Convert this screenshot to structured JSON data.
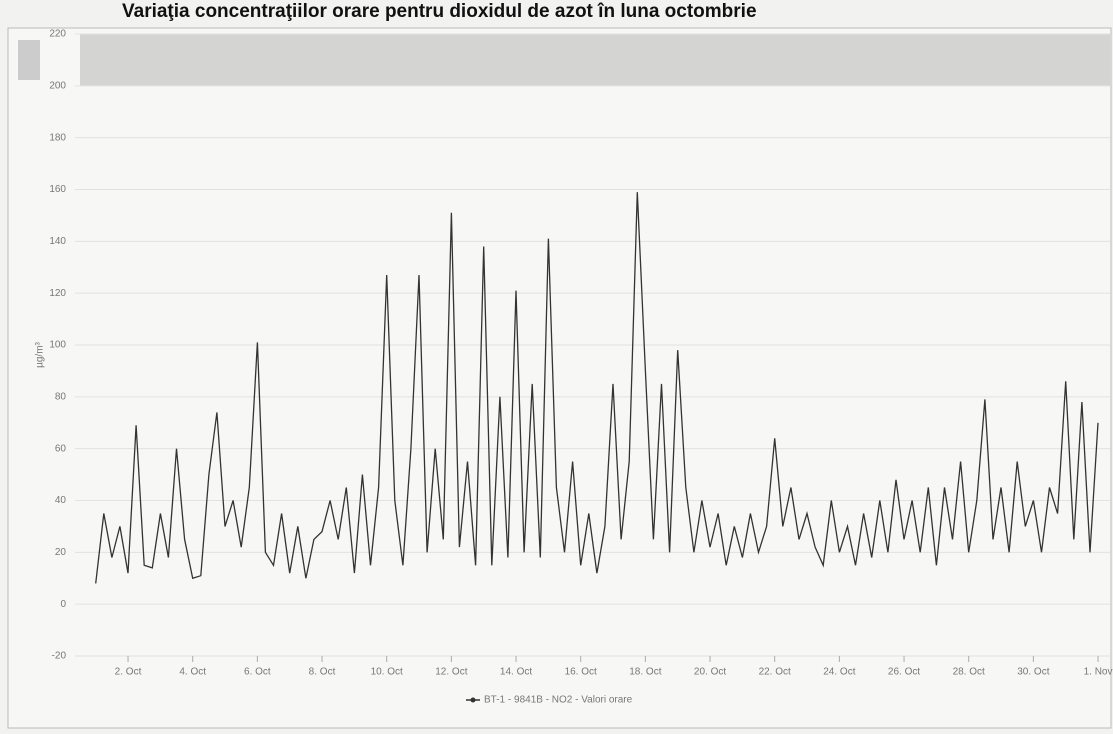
{
  "chart_data": {
    "type": "line",
    "title": "Variaţia concentraţiilor orare pentru dioxidul de azot în luna octombrie",
    "y_label": "µg/m³",
    "x": [
      1,
      1.25,
      1.5,
      1.75,
      2,
      2.25,
      2.5,
      2.75,
      3,
      3.25,
      3.5,
      3.75,
      4,
      4.25,
      4.5,
      4.75,
      5,
      5.25,
      5.5,
      5.75,
      6,
      6.25,
      6.5,
      6.75,
      7,
      7.25,
      7.5,
      7.75,
      8,
      8.25,
      8.5,
      8.75,
      9,
      9.25,
      9.5,
      9.75,
      10,
      10.25,
      10.5,
      10.75,
      11,
      11.25,
      11.5,
      11.75,
      12,
      12.25,
      12.5,
      12.75,
      13,
      13.25,
      13.5,
      13.75,
      14,
      14.25,
      14.5,
      14.75,
      15,
      15.25,
      15.5,
      15.75,
      16,
      16.25,
      16.5,
      16.75,
      17,
      17.25,
      17.5,
      17.75,
      18,
      18.25,
      18.5,
      18.75,
      19,
      19.25,
      19.5,
      19.75,
      20,
      20.25,
      20.5,
      20.75,
      21,
      21.25,
      21.5,
      21.75,
      22,
      22.25,
      22.5,
      22.75,
      23,
      23.25,
      23.5,
      23.75,
      24,
      24.25,
      24.5,
      24.75,
      25,
      25.25,
      25.5,
      25.75,
      26,
      26.25,
      26.5,
      26.75,
      27,
      27.25,
      27.5,
      27.75,
      28,
      28.25,
      28.5,
      28.75,
      29,
      29.25,
      29.5,
      29.75,
      30,
      30.25,
      30.5,
      30.75,
      31,
      31.25,
      31.5,
      31.75,
      32
    ],
    "series": [
      {
        "name": "BT-1 - 9841B - NO2 - Valori orare",
        "color": "#333333",
        "values": [
          8,
          35,
          18,
          30,
          12,
          69,
          15,
          14,
          35,
          18,
          60,
          25,
          10,
          11,
          50,
          74,
          30,
          40,
          22,
          45,
          101,
          20,
          15,
          35,
          12,
          30,
          10,
          25,
          28,
          40,
          25,
          45,
          12,
          50,
          15,
          45,
          127,
          40,
          15,
          60,
          127,
          20,
          60,
          25,
          151,
          22,
          55,
          15,
          138,
          15,
          80,
          18,
          121,
          20,
          85,
          18,
          141,
          45,
          20,
          55,
          15,
          35,
          12,
          30,
          85,
          25,
          55,
          159,
          90,
          25,
          85,
          20,
          98,
          45,
          20,
          40,
          22,
          35,
          15,
          30,
          18,
          35,
          20,
          30,
          64,
          30,
          45,
          25,
          35,
          22,
          15,
          40,
          20,
          30,
          15,
          35,
          18,
          40,
          20,
          48,
          25,
          40,
          20,
          45,
          15,
          45,
          25,
          55,
          20,
          40,
          79,
          25,
          45,
          20,
          55,
          30,
          40,
          20,
          45,
          35,
          86,
          25,
          78,
          20,
          70
        ]
      }
    ],
    "xlim": [
      0.36,
      32.37
    ],
    "xticks": [
      {
        "value": 2,
        "label": "2. Oct"
      },
      {
        "value": 4,
        "label": "4. Oct"
      },
      {
        "value": 6,
        "label": "6. Oct"
      },
      {
        "value": 8,
        "label": "8. Oct"
      },
      {
        "value": 10,
        "label": "10. Oct"
      },
      {
        "value": 12,
        "label": "12. Oct"
      },
      {
        "value": 14,
        "label": "14. Oct"
      },
      {
        "value": 16,
        "label": "16. Oct"
      },
      {
        "value": 18,
        "label": "18. Oct"
      },
      {
        "value": 20,
        "label": "20. Oct"
      },
      {
        "value": 22,
        "label": "22. Oct"
      },
      {
        "value": 24,
        "label": "24. Oct"
      },
      {
        "value": 26,
        "label": "26. Oct"
      },
      {
        "value": 28,
        "label": "28. Oct"
      },
      {
        "value": 30,
        "label": "30. Oct"
      },
      {
        "value": 32,
        "label": "1. Nov"
      }
    ],
    "ylim": [
      -20,
      220
    ],
    "yticks": [
      -20,
      0,
      20,
      40,
      60,
      80,
      100,
      120,
      140,
      160,
      180,
      200,
      220
    ],
    "plot_band": [
      200,
      220
    ],
    "grid": true
  }
}
